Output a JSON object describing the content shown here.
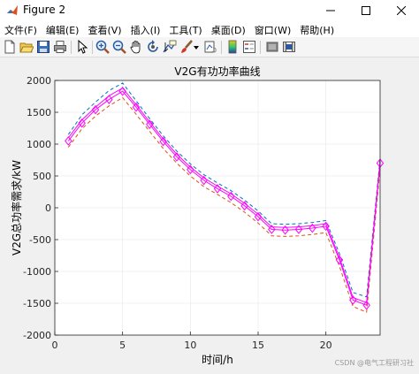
{
  "window": {
    "title": "Figure 2"
  },
  "menu": [
    "文件(F)",
    "编辑(E)",
    "查看(V)",
    "插入(I)",
    "工具(T)",
    "桌面(D)",
    "窗口(W)",
    "帮助(H)"
  ],
  "toolbar": {
    "icons": [
      "new-figure-icon",
      "open-file-icon",
      "save-icon",
      "print-icon",
      "select-arrow-icon",
      "zoom-in-icon",
      "zoom-out-icon",
      "pan-hand-icon",
      "rotate-3d-icon",
      "data-cursor-icon",
      "brush-icon",
      "link-plot-icon",
      "colorbar-icon",
      "legend-icon",
      "hide-plot-tools-icon",
      "show-plot-tools-icon"
    ]
  },
  "watermark": "CSDN @电气工程研习社",
  "colors": {
    "main": "#ff00ff",
    "upper": "#0072bd",
    "lower": "#d95319",
    "grid": "#e6e6e6"
  },
  "chart_data": {
    "type": "line",
    "title": "V2G有功功率曲线",
    "xlabel": "时间/h",
    "ylabel": "V2G总功率需求/kW",
    "xlim": [
      0,
      24
    ],
    "ylim": [
      -2000,
      2000
    ],
    "xticks": [
      0,
      5,
      10,
      15,
      20
    ],
    "yticks": [
      -2000,
      -1500,
      -1000,
      -500,
      0,
      500,
      1000,
      1500,
      2000
    ],
    "x": [
      1,
      2,
      3,
      4,
      5,
      6,
      7,
      8,
      9,
      10,
      11,
      12,
      13,
      14,
      15,
      16,
      17,
      18,
      19,
      20,
      21,
      22,
      23,
      24
    ],
    "series": [
      {
        "values": [
          1050,
          1330,
          1540,
          1700,
          1830,
          1580,
          1310,
          1040,
          800,
          600,
          430,
          300,
          180,
          30,
          -140,
          -340,
          -350,
          -340,
          -320,
          -290,
          -820,
          -1450,
          -1530,
          700
        ],
        "style": "solid",
        "marker": "diamond"
      },
      {
        "values": [
          1100,
          1380,
          1580,
          1760,
          1880,
          1620,
          1350,
          1080,
          840,
          640,
          470,
          340,
          220,
          70,
          -100,
          -300,
          -310,
          -300,
          -280,
          -250,
          -780,
          -1410,
          -1490,
          740
        ],
        "style": "solid"
      },
      {
        "values": [
          1150,
          1460,
          1660,
          1840,
          1960,
          1680,
          1400,
          1130,
          890,
          690,
          520,
          390,
          270,
          120,
          -50,
          -250,
          -260,
          -250,
          -230,
          -200,
          -720,
          -1330,
          -1400,
          780
        ],
        "style": "dashed"
      },
      {
        "values": [
          950,
          1240,
          1440,
          1600,
          1730,
          1470,
          1200,
          930,
          700,
          500,
          330,
          210,
          80,
          -70,
          -240,
          -440,
          -450,
          -440,
          -420,
          -390,
          -920,
          -1550,
          -1640,
          620
        ],
        "style": "dashed"
      }
    ]
  }
}
